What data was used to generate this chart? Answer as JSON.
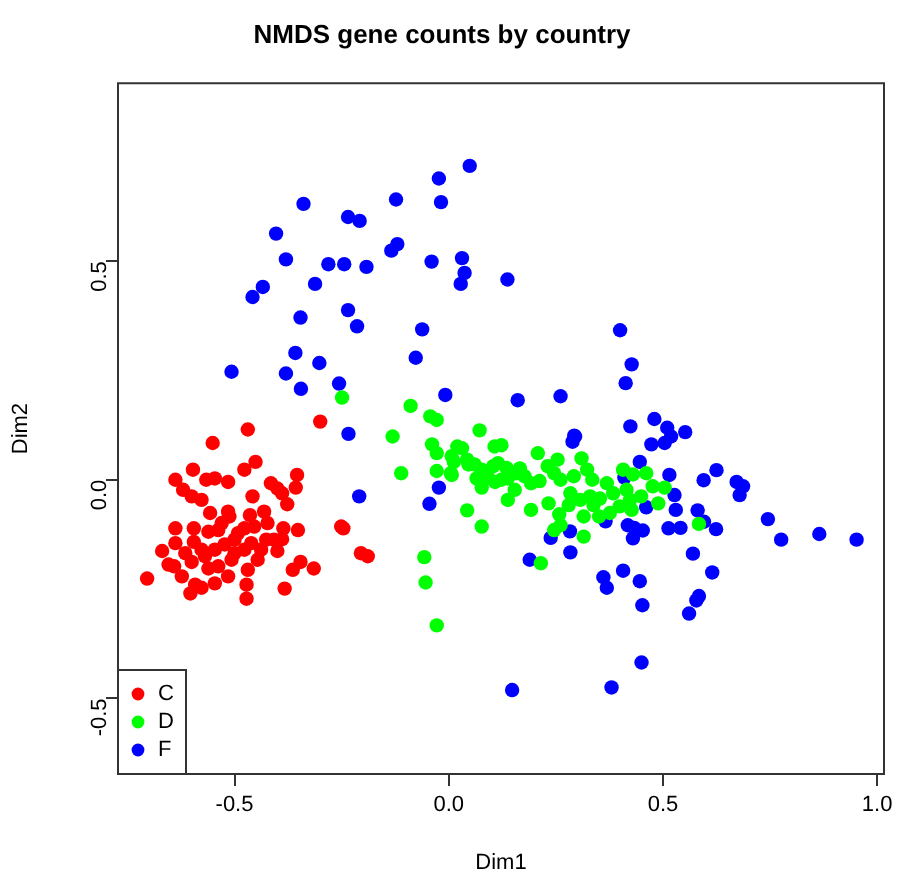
{
  "chart_data": {
    "type": "scatter",
    "title": "NMDS gene counts by country",
    "xlabel": "Dim1",
    "ylabel": "Dim2",
    "xlim": [
      -0.772,
      1.016
    ],
    "ylim": [
      -0.673,
      0.907
    ],
    "xticks": [
      {
        "value": -0.5,
        "label": "-0.5"
      },
      {
        "value": 0,
        "label": "0.0"
      },
      {
        "value": 0.5,
        "label": "0.5"
      },
      {
        "value": 1,
        "label": "1.0"
      }
    ],
    "yticks": [
      {
        "value": -0.5,
        "label": "-0.5"
      },
      {
        "value": 0,
        "label": "0.0"
      },
      {
        "value": 0.5,
        "label": "0.5"
      }
    ],
    "grid": false,
    "legend": "bottom left",
    "marker": "circle",
    "series": [
      {
        "name": "C",
        "color": "#ff0000",
        "x": [
          -0.469,
          -0.551,
          -0.3,
          -0.638,
          -0.62,
          -0.597,
          -0.566,
          -0.546,
          -0.515,
          -0.6,
          -0.577,
          -0.477,
          -0.451,
          -0.415,
          -0.4,
          -0.389,
          -0.354,
          -0.357,
          -0.377,
          -0.458,
          -0.557,
          -0.515,
          -0.512,
          -0.464,
          -0.431,
          -0.638,
          -0.595,
          -0.561,
          -0.538,
          -0.477,
          -0.454,
          -0.423,
          -0.386,
          -0.352,
          -0.669,
          -0.638,
          -0.615,
          -0.595,
          -0.577,
          -0.546,
          -0.523,
          -0.5,
          -0.477,
          -0.461,
          -0.426,
          -0.4,
          -0.389,
          -0.654,
          -0.641,
          -0.6,
          -0.561,
          -0.515,
          -0.469,
          -0.446,
          -0.364,
          -0.346,
          -0.315,
          -0.704,
          -0.592,
          -0.577,
          -0.472,
          -0.383,
          -0.472,
          -0.603,
          -0.251,
          -0.246,
          -0.205,
          -0.189,
          -0.5,
          -0.538,
          -0.569,
          -0.53,
          -0.492,
          -0.438,
          -0.408,
          -0.623,
          -0.546,
          -0.507
        ],
        "values": [
          0.115,
          0.084,
          0.133,
          0.0,
          -0.023,
          0.023,
          0.0,
          0.003,
          -0.005,
          -0.038,
          -0.046,
          0.023,
          0.041,
          -0.008,
          -0.02,
          -0.031,
          0.011,
          -0.018,
          -0.056,
          -0.038,
          -0.076,
          -0.073,
          -0.084,
          -0.081,
          -0.073,
          -0.111,
          -0.111,
          -0.119,
          -0.115,
          -0.111,
          -0.107,
          -0.099,
          -0.111,
          -0.115,
          -0.163,
          -0.145,
          -0.168,
          -0.142,
          -0.16,
          -0.16,
          -0.148,
          -0.137,
          -0.16,
          -0.145,
          -0.137,
          -0.163,
          -0.136,
          -0.194,
          -0.198,
          -0.188,
          -0.203,
          -0.221,
          -0.206,
          -0.183,
          -0.206,
          -0.188,
          -0.203,
          -0.226,
          -0.24,
          -0.247,
          -0.24,
          -0.249,
          -0.272,
          -0.26,
          -0.107,
          -0.111,
          -0.168,
          -0.175,
          -0.168,
          -0.198,
          -0.175,
          -0.099,
          -0.122,
          -0.16,
          -0.137,
          -0.221,
          -0.237,
          -0.183
        ]
      },
      {
        "name": "D",
        "color": "#00ff00",
        "x": [
          -0.249,
          -0.089,
          -0.043,
          -0.028,
          0.072,
          -0.131,
          -0.039,
          -0.028,
          -0.111,
          -0.028,
          0.012,
          0.02,
          0.031,
          0.043,
          0.046,
          0.007,
          0.065,
          0.077,
          0.043,
          0.077,
          -0.057,
          -0.054,
          -0.028,
          0.107,
          0.123,
          0.115,
          0.104,
          0.135,
          0.108,
          0.123,
          0.138,
          0.157,
          0.166,
          0.177,
          0.192,
          0.208,
          0.212,
          0.231,
          0.254,
          0.246,
          0.261,
          0.233,
          0.192,
          0.258,
          0.246,
          0.261,
          0.31,
          0.323,
          0.335,
          0.33,
          0.338,
          0.315,
          0.315,
          0.351,
          0.369,
          0.384,
          0.399,
          0.407,
          0.415,
          0.427,
          0.43,
          0.449,
          0.461,
          0.476,
          0.489,
          0.504,
          0.584,
          0.215,
          0.154,
          0.138,
          0.284,
          0.292,
          0.353,
          0.376,
          0.423,
          0.307,
          0.28,
          0.007,
          0.005,
          0.077,
          0.092,
          0.06
        ],
        "values": [
          0.188,
          0.169,
          0.145,
          0.137,
          0.113,
          0.099,
          0.081,
          0.061,
          0.015,
          0.02,
          0.041,
          0.076,
          0.072,
          0.046,
          0.035,
          0.011,
          0.003,
          -0.018,
          -0.07,
          -0.107,
          -0.177,
          -0.235,
          -0.333,
          0.076,
          0.079,
          0.038,
          0.031,
          0.027,
          -0.005,
          0.0,
          0.003,
          0.015,
          0.026,
          0.008,
          -0.008,
          0.061,
          -0.003,
          0.031,
          0.046,
          0.015,
          0.0,
          -0.054,
          -0.069,
          -0.079,
          -0.115,
          -0.104,
          0.049,
          0.023,
          0.0,
          -0.038,
          -0.058,
          -0.084,
          -0.13,
          -0.084,
          -0.008,
          -0.031,
          -0.061,
          0.023,
          -0.023,
          -0.069,
          0.012,
          -0.038,
          0.015,
          -0.015,
          -0.054,
          -0.018,
          -0.101,
          -0.191,
          -0.023,
          -0.046,
          -0.031,
          0.008,
          -0.043,
          -0.076,
          -0.046,
          -0.046,
          -0.058,
          0.054,
          0.015,
          0.023,
          0.005,
          0.035
        ]
      },
      {
        "name": "F",
        "color": "#0000ff",
        "x": [
          0.049,
          -0.023,
          -0.339,
          -0.123,
          -0.018,
          -0.235,
          -0.208,
          -0.403,
          -0.12,
          -0.134,
          -0.38,
          -0.281,
          -0.244,
          -0.192,
          -0.04,
          0.031,
          0.037,
          0.028,
          -0.434,
          -0.458,
          -0.312,
          -0.346,
          -0.235,
          -0.214,
          -0.062,
          -0.358,
          -0.077,
          -0.507,
          -0.38,
          -0.302,
          -0.345,
          -0.256,
          -0.008,
          -0.234,
          0.137,
          0.4,
          0.427,
          0.413,
          0.161,
          0.261,
          0.48,
          0.51,
          0.552,
          0.424,
          0.293,
          0.519,
          0.504,
          0.473,
          0.289,
          0.295,
          0.446,
          0.41,
          0.515,
          0.595,
          0.625,
          0.672,
          0.687,
          0.679,
          0.527,
          0.461,
          0.53,
          0.581,
          0.596,
          0.745,
          0.513,
          0.541,
          0.624,
          0.776,
          0.865,
          0.952,
          0.418,
          0.433,
          0.453,
          0.43,
          0.366,
          0.283,
          0.238,
          0.284,
          0.189,
          0.57,
          0.615,
          0.407,
          0.361,
          0.369,
          0.446,
          0.452,
          0.584,
          0.578,
          0.561,
          0.45,
          0.38,
          0.148,
          -0.023,
          -0.045,
          -0.209
        ],
        "values": [
          0.718,
          0.689,
          0.631,
          0.641,
          0.635,
          0.601,
          0.592,
          0.563,
          0.539,
          0.524,
          0.504,
          0.493,
          0.493,
          0.487,
          0.499,
          0.507,
          0.473,
          0.448,
          0.441,
          0.418,
          0.448,
          0.371,
          0.388,
          0.351,
          0.344,
          0.29,
          0.279,
          0.247,
          0.243,
          0.267,
          0.208,
          0.22,
          0.194,
          0.105,
          0.458,
          0.342,
          0.264,
          0.221,
          0.182,
          0.191,
          0.139,
          0.119,
          0.109,
          0.122,
          0.101,
          0.099,
          0.084,
          0.081,
          0.087,
          0.099,
          0.041,
          0.005,
          0.011,
          -0.001,
          0.022,
          -0.005,
          -0.015,
          -0.035,
          -0.035,
          -0.063,
          -0.069,
          -0.07,
          -0.096,
          -0.09,
          -0.111,
          -0.11,
          -0.113,
          -0.137,
          -0.124,
          -0.137,
          -0.104,
          -0.11,
          -0.116,
          -0.134,
          -0.095,
          -0.118,
          -0.133,
          -0.166,
          -0.183,
          -0.169,
          -0.212,
          -0.208,
          -0.223,
          -0.247,
          -0.232,
          -0.287,
          -0.266,
          -0.276,
          -0.306,
          -0.418,
          -0.475,
          -0.481,
          -0.018,
          -0.055,
          -0.038
        ]
      }
    ]
  }
}
